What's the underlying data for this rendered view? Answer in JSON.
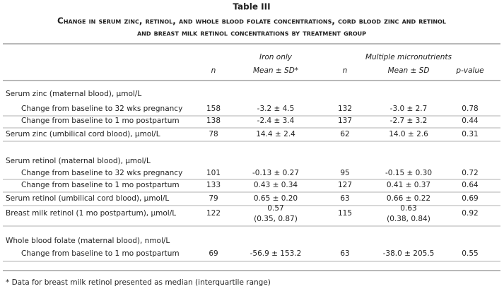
{
  "title": "Table III",
  "subtitle": [
    "Change in serum zinc, retinol, and whole blood folate concentrations, cord blood zinc and retinol",
    "and breast milk retinol concentrations by treatment group"
  ],
  "header": {
    "group1": "Iron only",
    "group2": "Multiple micronutrients",
    "n1": "n",
    "mean1": "Mean ± SD*",
    "n2": "n",
    "mean2": "Mean ± SD",
    "p": "p-value"
  },
  "table": {
    "rows": [
      {
        "label": "Serum zinc (maternal blood), μmol/L"
      },
      {
        "label": "Change from baseline to 32 wks pregnancy",
        "n1": 158,
        "mean1": "-3.2 ± 4.5",
        "n2": 132,
        "mean2": "-3.0 ± 2.7",
        "p": 0.78
      },
      {
        "label": "Change from baseline to 1 mo postpartum",
        "n1": 138,
        "mean1": "-2.4 ± 3.4",
        "n2": 137,
        "mean2": "-2.7 ± 3.2",
        "p": 0.44
      },
      {
        "label": "Serum zinc (umbilical cord blood), μmol/L",
        "n1": 78,
        "mean1": "14.4 ± 2.4",
        "n2": 62,
        "mean2": "14.0 ± 2.6",
        "p": 0.31
      },
      {
        "label": "Serum retinol (maternal blood), μmol/L"
      },
      {
        "label": "Change from baseline to 32 wks pregnancy",
        "n1": 101,
        "mean1": "-0.13 ± 0.27",
        "n2": 95,
        "mean2": "-0.15 ± 0.30",
        "p": 0.72
      },
      {
        "label": "Change from baseline to 1 mo postpartum",
        "n1": 133,
        "mean1": "0.43 ± 0.34",
        "n2": 127,
        "mean2": "0.41 ± 0.37",
        "p": 0.64
      },
      {
        "label": "Serum retinol (umbilical cord blood), μmol/L",
        "n1": 79,
        "mean1": "0.65 ± 0.20",
        "n2": 63,
        "mean2": "0.66 ± 0.22",
        "p": 0.69
      },
      {
        "label": "Breast milk retinol (1 mo postpartum), μmol/L",
        "n1": 122,
        "mean1": [
          "0.57",
          "(0.35, 0.87)"
        ],
        "n2": 115,
        "mean2": [
          "0.63",
          "(0.38, 0.84)"
        ],
        "p": 0.92
      },
      {
        "label": "Whole blood folate (maternal blood), nmol/L"
      },
      {
        "label": "Change from baseline to 1 mo postpartum",
        "n1": 69,
        "mean1": "-56.9 ± 153.2",
        "n2": 63,
        "mean2": "-38.0 ± 205.5",
        "p": 0.55
      }
    ]
  },
  "footnote": "* Data for breast milk retinol presented as median (interquartile range)"
}
